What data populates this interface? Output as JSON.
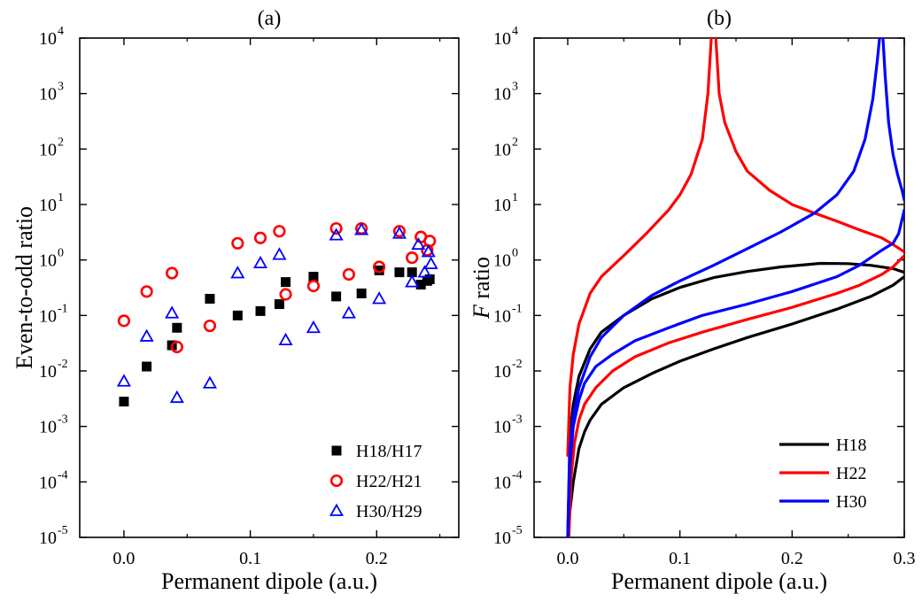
{
  "chart_data": [
    {
      "type": "scatter",
      "title": "(a)",
      "xlabel": "Permanent dipole (a.u.)",
      "ylabel": "Even-to-odd ratio",
      "xlim": [
        -0.035,
        0.265
      ],
      "yscale": "log",
      "ylim": [
        1e-05,
        10000.0
      ],
      "xticks": [
        "0.0",
        "0.1",
        "0.2"
      ],
      "xtick_values": [
        0,
        0.1,
        0.2
      ],
      "yticks": [
        -5,
        -4,
        -3,
        -2,
        -1,
        0,
        1,
        2,
        3,
        4
      ],
      "ytick_base": "10",
      "legend_position": "bottom-right",
      "grid": false,
      "series": [
        {
          "name": "H18/H17",
          "marker": "square",
          "color": "#000000",
          "x": [
            0.0,
            0.018,
            0.038,
            0.042,
            0.068,
            0.09,
            0.108,
            0.123,
            0.128,
            0.15,
            0.168,
            0.188,
            0.202,
            0.218,
            0.228,
            0.235,
            0.24,
            0.242
          ],
          "y": [
            0.0028,
            0.012,
            0.029,
            0.06,
            0.2,
            0.1,
            0.12,
            0.16,
            0.4,
            0.5,
            0.22,
            0.25,
            0.65,
            0.6,
            0.6,
            0.36,
            0.42,
            0.45
          ]
        },
        {
          "name": "H22/H21",
          "marker": "circle",
          "color": "#ff0000",
          "x": [
            0.0,
            0.018,
            0.038,
            0.042,
            0.068,
            0.09,
            0.108,
            0.123,
            0.128,
            0.15,
            0.168,
            0.178,
            0.188,
            0.202,
            0.218,
            0.228,
            0.235,
            0.24,
            0.242
          ],
          "y": [
            0.08,
            0.27,
            0.58,
            0.027,
            0.065,
            2.0,
            2.5,
            3.3,
            0.24,
            0.34,
            3.7,
            0.55,
            3.7,
            0.75,
            3.3,
            1.1,
            2.6,
            1.5,
            2.2
          ]
        },
        {
          "name": "H30/H29",
          "marker": "triangle",
          "color": "#0000ff",
          "x": [
            0.0,
            0.018,
            0.038,
            0.042,
            0.068,
            0.09,
            0.108,
            0.123,
            0.128,
            0.15,
            0.168,
            0.178,
            0.188,
            0.202,
            0.218,
            0.228,
            0.233,
            0.238,
            0.241,
            0.243
          ],
          "y": [
            0.0065,
            0.042,
            0.11,
            0.0033,
            0.006,
            0.58,
            0.88,
            1.25,
            0.036,
            0.06,
            2.8,
            0.11,
            3.5,
            0.2,
            3.0,
            0.4,
            1.9,
            0.6,
            1.4,
            0.85
          ]
        }
      ]
    },
    {
      "type": "line",
      "title": "(b)",
      "xlabel": "Permanent dipole (a.u.)",
      "ylabel": "F ratio",
      "ylabel_italic": "F",
      "ylabel_rest": " ratio",
      "xlim": [
        -0.03,
        0.3
      ],
      "yscale": "log",
      "ylim": [
        1e-05,
        10000.0
      ],
      "xticks": [
        "0.0",
        "0.1",
        "0.2",
        "0.3"
      ],
      "xtick_values": [
        0,
        0.1,
        0.2,
        0.3
      ],
      "yticks": [
        -5,
        -4,
        -3,
        -2,
        -1,
        0,
        1,
        2,
        3,
        4
      ],
      "ytick_base": "10",
      "legend_position": "bottom-right",
      "grid": false,
      "series": [
        {
          "name": "H18",
          "color": "#000000",
          "upper": {
            "x": [
              0.0,
              0.002,
              0.005,
              0.01,
              0.02,
              0.03,
              0.05,
              0.075,
              0.1,
              0.13,
              0.16,
              0.19,
              0.225,
              0.25,
              0.27,
              0.29,
              0.3
            ],
            "y": [
              1e-05,
              0.0007,
              0.0025,
              0.008,
              0.025,
              0.05,
              0.1,
              0.2,
              0.32,
              0.48,
              0.62,
              0.75,
              0.87,
              0.86,
              0.8,
              0.7,
              0.6
            ]
          },
          "lower": {
            "x": [
              0.0,
              0.002,
              0.005,
              0.01,
              0.015,
              0.02,
              0.03,
              0.05,
              0.075,
              0.1,
              0.13,
              0.16,
              0.2,
              0.24,
              0.27,
              0.29,
              0.3
            ],
            "y": [
              1e-05,
              3e-05,
              0.0001,
              0.0004,
              0.0008,
              0.0013,
              0.0025,
              0.005,
              0.009,
              0.015,
              0.025,
              0.04,
              0.07,
              0.13,
              0.22,
              0.35,
              0.5
            ]
          }
        },
        {
          "name": "H22",
          "color": "#ff0000",
          "upper": {
            "x": [
              0.0,
              0.002,
              0.005,
              0.01,
              0.02,
              0.03,
              0.05,
              0.07,
              0.09,
              0.1,
              0.11,
              0.12,
              0.125,
              0.128
            ],
            "y": [
              0.0003,
              0.005,
              0.02,
              0.07,
              0.25,
              0.5,
              1.2,
              3.0,
              8.0,
              15,
              35,
              150,
              1000,
              10000
            ]
          },
          "lower": {
            "x": [
              0.132,
              0.135,
              0.14,
              0.15,
              0.16,
              0.18,
              0.2,
              0.22,
              0.24,
              0.26,
              0.28,
              0.29,
              0.3
            ],
            "y": [
              10000,
              1000,
              300,
              90,
              40,
              18,
              10,
              7,
              5,
              3.5,
              2.5,
              1.9,
              1.4
            ]
          },
          "tail": {
            "x": [
              0.3,
              0.29,
              0.28,
              0.26,
              0.24,
              0.2,
              0.16,
              0.12,
              0.09,
              0.06,
              0.04,
              0.025,
              0.015,
              0.01,
              0.006,
              0.003,
              0.001
            ],
            "y": [
              1.2,
              0.75,
              0.55,
              0.35,
              0.25,
              0.14,
              0.085,
              0.05,
              0.032,
              0.018,
              0.01,
              0.005,
              0.0025,
              0.0013,
              0.0005,
              0.00012,
              1e-05
            ]
          }
        },
        {
          "name": "H30",
          "color": "#0000ff",
          "upper": {
            "x": [
              0.0,
              0.002,
              0.005,
              0.01,
              0.02,
              0.03,
              0.05,
              0.075,
              0.1,
              0.13,
              0.16,
              0.19,
              0.22,
              0.24,
              0.255,
              0.265,
              0.272,
              0.276,
              0.278
            ],
            "y": [
              1e-05,
              0.0004,
              0.0015,
              0.005,
              0.018,
              0.04,
              0.1,
              0.23,
              0.42,
              0.8,
              1.6,
              3.2,
              7.0,
              15,
              40,
              150,
              800,
              4000,
              10000
            ]
          },
          "lower": {
            "x": [
              0.281,
              0.283,
              0.286,
              0.29,
              0.294,
              0.298,
              0.3
            ],
            "y": [
              10000,
              2000,
              300,
              80,
              35,
              18,
              12
            ]
          },
          "tail": {
            "x": [
              0.3,
              0.295,
              0.29,
              0.28,
              0.26,
              0.24,
              0.2,
              0.16,
              0.12,
              0.09,
              0.06,
              0.04,
              0.025,
              0.015,
              0.01,
              0.005,
              0.002,
              0.0
            ],
            "y": [
              8,
              3,
              2,
              1.5,
              0.8,
              0.5,
              0.27,
              0.16,
              0.1,
              0.06,
              0.035,
              0.02,
              0.012,
              0.006,
              0.003,
              0.001,
              0.0002,
              1e-05
            ]
          }
        }
      ]
    }
  ]
}
